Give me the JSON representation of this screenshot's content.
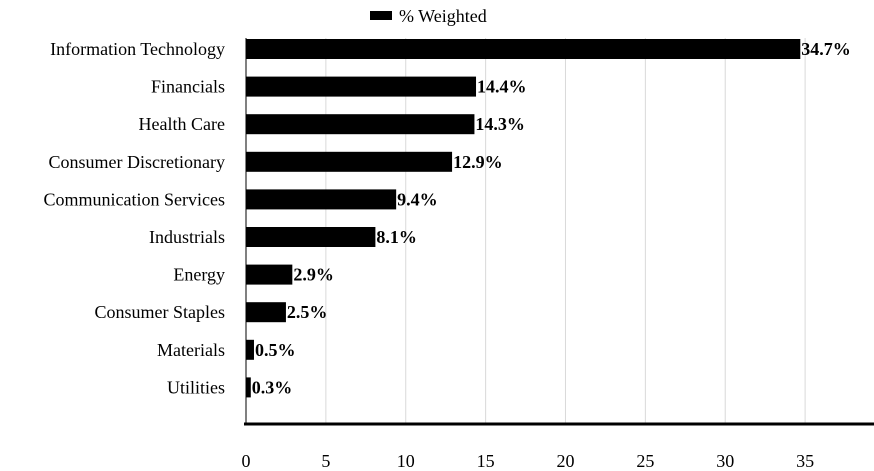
{
  "chart_data": {
    "type": "bar",
    "orientation": "horizontal",
    "categories": [
      "Information Technology",
      "Financials",
      "Health Care",
      "Consumer Discretionary",
      "Communication Services",
      "Industrials",
      "Energy",
      "Consumer Staples",
      "Materials",
      "Utilities"
    ],
    "series": [
      {
        "name": "% Weighted",
        "values": [
          34.7,
          14.4,
          14.3,
          12.9,
          9.4,
          8.1,
          2.9,
          2.5,
          0.5,
          0.3
        ],
        "labels": [
          "34.7%",
          "14.4%",
          "14.3%",
          "12.9%",
          "9.4%",
          "8.1%",
          "2.9%",
          "2.5%",
          "0.5%",
          "0.3%"
        ],
        "color": "#000000"
      }
    ],
    "xlim": [
      0,
      39
    ],
    "xticks": [
      0,
      5,
      10,
      15,
      20,
      25,
      30,
      35
    ],
    "xtick_labels": [
      "0",
      "5",
      "10",
      "15",
      "20",
      "25",
      "30",
      "35"
    ],
    "grid": "vertical",
    "grid_color": "#d9d9d9",
    "legend_position": "top-center",
    "title": "",
    "xlabel": "",
    "ylabel": ""
  }
}
